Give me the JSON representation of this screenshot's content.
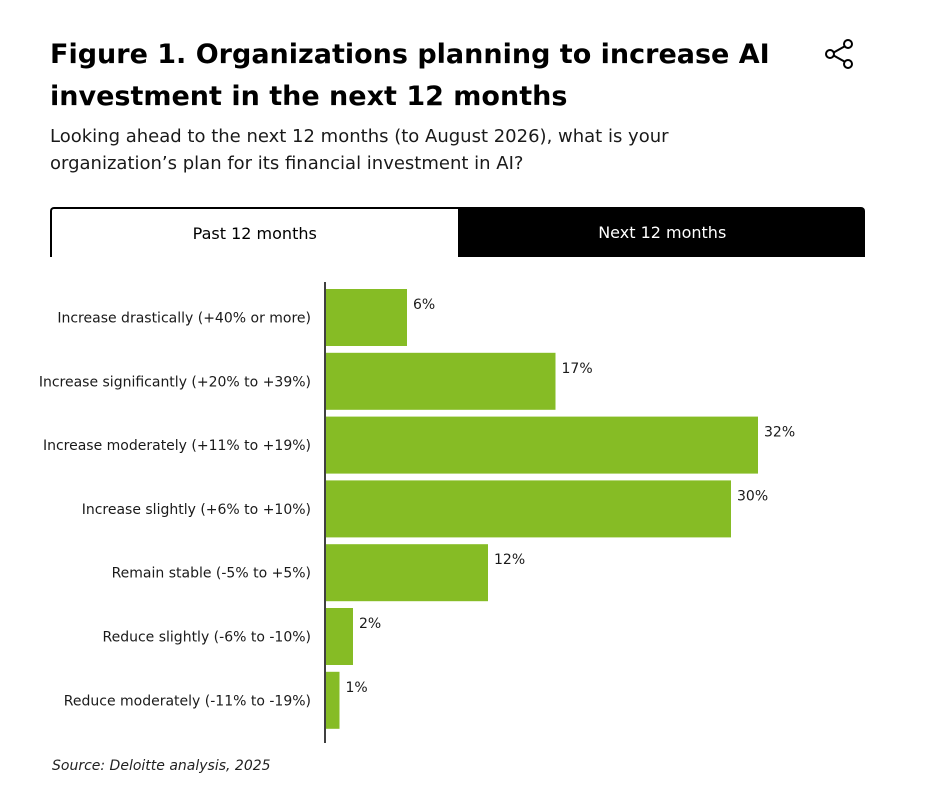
{
  "header": {
    "title": "Figure 1. Organizations planning to increase AI investment in the next 12 months",
    "subtitle": "Looking ahead to the next 12 months (to August 2026), what is your organization’s plan for its financial investment in AI?",
    "share_icon": "share-icon"
  },
  "tabs": [
    {
      "label": "Past 12 months",
      "active": true
    },
    {
      "label": "Next 12 months",
      "active": false
    }
  ],
  "colors": {
    "bar": "#86bc25",
    "axis": "#000000",
    "active_tab_bg": "#ffffff",
    "inactive_tab_bg": "#000000"
  },
  "chart_data": {
    "type": "bar",
    "orientation": "horizontal",
    "categories": [
      "Increase drastically (+40% or more)",
      "Increase significantly (+20% to +39%)",
      "Increase moderately (+11% to +19%)",
      "Increase slightly (+6% to +10%)",
      "Remain stable (-5% to +5%)",
      "Reduce slightly (-6% to -10%)",
      "Reduce moderately (-11% to -19%)"
    ],
    "values": [
      6,
      17,
      32,
      30,
      12,
      2,
      1
    ],
    "value_labels": [
      "6%",
      "17%",
      "32%",
      "30%",
      "12%",
      "2%",
      "1%"
    ],
    "unit": "%",
    "xlim": [
      0,
      32
    ]
  },
  "footer": {
    "source": "Source: Deloitte analysis, 2025"
  }
}
